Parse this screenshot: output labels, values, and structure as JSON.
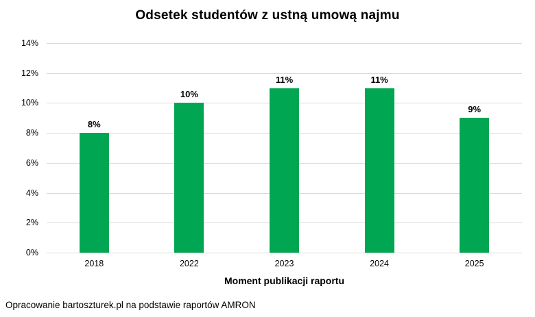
{
  "chart_data": {
    "type": "bar",
    "title": "Odsetek studentów z ustną umową najmu",
    "xlabel": "Moment publikacji raportu",
    "ylabel": "",
    "categories": [
      "2018",
      "2022",
      "2023",
      "2024",
      "2025"
    ],
    "values": [
      8,
      10,
      11,
      11,
      9
    ],
    "data_labels": [
      "8%",
      "10%",
      "11%",
      "11%",
      "9%"
    ],
    "ylim": [
      0,
      14
    ],
    "ytick_step": 2,
    "yticks": [
      {
        "value": 0,
        "label": "0%"
      },
      {
        "value": 2,
        "label": "2%"
      },
      {
        "value": 4,
        "label": "4%"
      },
      {
        "value": 6,
        "label": "6%"
      },
      {
        "value": 8,
        "label": "8%"
      },
      {
        "value": 10,
        "label": "10%"
      },
      {
        "value": 12,
        "label": "12%"
      },
      {
        "value": 14,
        "label": "14%"
      }
    ],
    "grid": "horizontal",
    "legend": "none",
    "colors": {
      "bar": "#00a651",
      "gridline": "#d9d9d9",
      "text": "#000000"
    }
  },
  "footer": {
    "text": "Opracowanie bartoszturek.pl na podstawie raportów AMRON"
  }
}
